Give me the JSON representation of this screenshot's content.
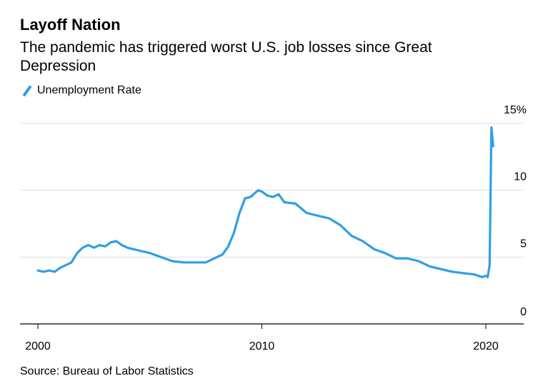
{
  "title": "Layoff Nation",
  "subtitle": "The pandemic has triggered worst U.S. job losses since Great Depression",
  "legend": {
    "label": "Unemployment Rate"
  },
  "source": "Source: Bureau of Labor Statistics",
  "colors": {
    "series": "#2f9ee8",
    "grid": "#dddddd",
    "axis": "#000000"
  },
  "chart_data": {
    "type": "line",
    "title": "Layoff Nation",
    "subtitle": "The pandemic has triggered worst U.S. job losses since Great Depression",
    "xlabel": "",
    "ylabel": "",
    "xlim": [
      1999.8,
      2021.7
    ],
    "ylim": [
      0,
      15
    ],
    "x_ticks": [
      2000,
      2010,
      2020
    ],
    "x_tick_labels": [
      "2000",
      "2010",
      "2020"
    ],
    "y_ticks": [
      0,
      5,
      10,
      15
    ],
    "y_tick_labels": [
      "0",
      "5",
      "10",
      "15%"
    ],
    "grid": "horizontal",
    "legend_position": "top-left",
    "series": [
      {
        "name": "Unemployment Rate",
        "x": [
          2000.0,
          2000.25,
          2000.5,
          2000.75,
          2001.0,
          2001.25,
          2001.5,
          2001.75,
          2002.0,
          2002.25,
          2002.5,
          2002.75,
          2003.0,
          2003.25,
          2003.5,
          2003.75,
          2004.0,
          2004.5,
          2005.0,
          2005.5,
          2006.0,
          2006.5,
          2007.0,
          2007.5,
          2008.0,
          2008.25,
          2008.5,
          2008.75,
          2009.0,
          2009.25,
          2009.5,
          2009.83,
          2010.0,
          2010.25,
          2010.5,
          2010.75,
          2011.0,
          2011.5,
          2012.0,
          2012.5,
          2013.0,
          2013.5,
          2014.0,
          2014.5,
          2015.0,
          2015.5,
          2016.0,
          2016.5,
          2017.0,
          2017.5,
          2018.0,
          2018.5,
          2019.0,
          2019.5,
          2019.83,
          2020.0,
          2020.08,
          2020.17,
          2020.25,
          2020.33
        ],
        "values": [
          4.0,
          3.9,
          4.0,
          3.9,
          4.2,
          4.4,
          4.6,
          5.3,
          5.7,
          5.9,
          5.7,
          5.9,
          5.8,
          6.1,
          6.2,
          5.9,
          5.7,
          5.5,
          5.3,
          5.0,
          4.7,
          4.6,
          4.6,
          4.6,
          5.0,
          5.2,
          5.8,
          6.8,
          8.3,
          9.4,
          9.5,
          10.0,
          9.9,
          9.6,
          9.5,
          9.7,
          9.1,
          9.0,
          8.3,
          8.1,
          7.9,
          7.4,
          6.6,
          6.2,
          5.6,
          5.3,
          4.9,
          4.9,
          4.7,
          4.3,
          4.1,
          3.9,
          3.8,
          3.7,
          3.5,
          3.6,
          3.5,
          4.4,
          14.7,
          13.3
        ]
      }
    ]
  }
}
